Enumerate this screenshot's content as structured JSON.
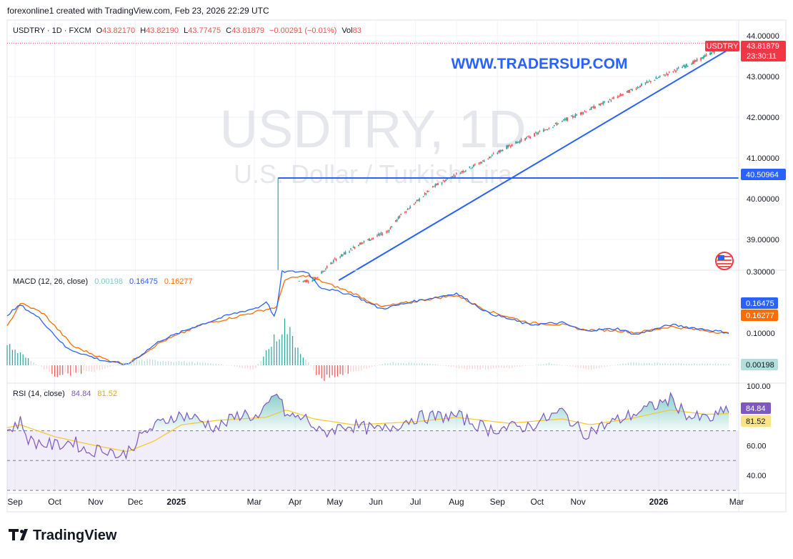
{
  "header": {
    "credit": "forexonline1 created with TradingView.com, Feb 23, 2026 22:29 UTC"
  },
  "legend": {
    "symbol": "USDTRY · 1D · FXCM",
    "o_label": "O",
    "o_value": "43.82170",
    "h_label": "H",
    "h_value": "43.82190",
    "l_label": "L",
    "l_value": "43.77475",
    "c_label": "C",
    "c_value": "43.81879",
    "change": "−0.00291 (−0.01%)",
    "vol_label": "Vol",
    "vol_value": "83"
  },
  "watermark": {
    "title": "USDTRY, 1D",
    "subtitle": "U.S. Dollar / Turkish Lira",
    "site": "WWW.TRADERSUP.COM"
  },
  "price_tags": {
    "symbol_tag": "USDTRY",
    "last_price": "43.81879",
    "countdown": "23:30:11",
    "level_tag": "40.50964"
  },
  "macd_panel": {
    "label": "MACD (12, 26, close)",
    "hist_value": "0.00198",
    "macd_value": "0.16475",
    "signal_value": "0.16277",
    "axis_tick": "0.10000",
    "axis_tick_top": "0.30000"
  },
  "rsi_panel": {
    "label": "RSI (14, close)",
    "rsi_value": "84.84",
    "ma_value": "81.52"
  },
  "footer": {
    "brand": "TradingView"
  },
  "colors": {
    "up": "#26a69a",
    "down": "#ef5350",
    "macd": "#2962ff",
    "signal": "#ff6d00",
    "rsi": "#7e57c2",
    "rsi_ma": "#f7c625",
    "hline": "#2962ff",
    "site": "#2962ff",
    "last_tag": "#f23645",
    "macd_tag": "#2962ff",
    "signal_tag": "#ff6d00",
    "hist_tag": "#b2dfdb",
    "rsi_tag": "#7e57c2",
    "rsima_tag": "#fbe384"
  },
  "chart_data": [
    {
      "type": "candlestick",
      "title": "USDTRY, 1D",
      "x_start": "2024-08-26",
      "x_end": "2026-02-23",
      "x_tick_labels": [
        "Sep",
        "Oct",
        "Nov",
        "Dec",
        "2025",
        "Mar",
        "Apr",
        "May",
        "Jun",
        "Jul",
        "Aug",
        "Sep",
        "Oct",
        "Nov",
        "2026",
        "Mar"
      ],
      "y_tick_labels": [
        "44.00000",
        "43.00000",
        "42.00000",
        "41.00000",
        "40.00000",
        "39.00000"
      ],
      "ylim": [
        38.3,
        44.0
      ],
      "series": [
        {
          "name": "USDTRY",
          "anchors": [
            [
              "2025-04-04",
              37.98
            ],
            [
              "2025-04-15",
              38.0
            ],
            [
              "2025-05-01",
              38.5
            ],
            [
              "2025-05-20",
              38.9
            ],
            [
              "2025-06-10",
              39.2
            ],
            [
              "2025-06-20",
              39.6
            ],
            [
              "2025-07-01",
              39.9
            ],
            [
              "2025-07-15",
              40.3
            ],
            [
              "2025-08-01",
              40.6
            ],
            [
              "2025-08-20",
              40.9
            ],
            [
              "2025-09-10",
              41.3
            ],
            [
              "2025-10-01",
              41.6
            ],
            [
              "2025-10-20",
              41.9
            ],
            [
              "2025-11-10",
              42.2
            ],
            [
              "2025-12-01",
              42.5
            ],
            [
              "2025-12-20",
              42.8
            ],
            [
              "2026-01-10",
              43.1
            ],
            [
              "2026-01-31",
              43.4
            ],
            [
              "2026-02-23",
              43.82
            ]
          ]
        },
        {
          "name": "spike",
          "points": [
            [
              "2025-03-19",
              40.50964
            ]
          ]
        }
      ],
      "horizontal_line": 40.50964,
      "trendline": [
        [
          "2025-05-04",
          38.0
        ],
        [
          "2026-02-26",
          43.72
        ]
      ],
      "last_price": 43.81879
    },
    {
      "type": "macd",
      "title": "MACD (12, 26, close)",
      "ylim": [
        0.04,
        0.32
      ],
      "series": [
        {
          "name": "MACD",
          "anchors": [
            [
              "2024-08-26",
              0.21
            ],
            [
              "2024-09-05",
              0.235
            ],
            [
              "2024-09-20",
              0.2
            ],
            [
              "2024-10-10",
              0.125
            ],
            [
              "2024-11-05",
              0.095
            ],
            [
              "2024-11-25",
              0.083
            ],
            [
              "2024-12-20",
              0.145
            ],
            [
              "2025-01-15",
              0.18
            ],
            [
              "2025-02-10",
              0.21
            ],
            [
              "2025-03-05",
              0.23
            ],
            [
              "2025-03-10",
              0.245
            ],
            [
              "2025-03-17",
              0.2
            ],
            [
              "2025-03-22",
              0.32
            ],
            [
              "2025-04-10",
              0.32
            ],
            [
              "2025-04-20",
              0.28
            ],
            [
              "2025-05-15",
              0.26
            ],
            [
              "2025-06-05",
              0.225
            ],
            [
              "2025-07-01",
              0.245
            ],
            [
              "2025-08-01",
              0.265
            ],
            [
              "2025-08-25",
              0.215
            ],
            [
              "2025-09-25",
              0.185
            ],
            [
              "2025-10-20",
              0.19
            ],
            [
              "2025-11-05",
              0.17
            ],
            [
              "2025-12-01",
              0.175
            ],
            [
              "2025-12-15",
              0.16
            ],
            [
              "2026-01-10",
              0.185
            ],
            [
              "2026-02-23",
              0.16475
            ]
          ]
        },
        {
          "name": "Signal",
          "anchors": [
            [
              "2024-08-26",
              0.18
            ],
            [
              "2024-09-05",
              0.24
            ],
            [
              "2024-09-22",
              0.215
            ],
            [
              "2024-10-15",
              0.13
            ],
            [
              "2024-11-10",
              0.095
            ],
            [
              "2024-11-25",
              0.085
            ],
            [
              "2024-12-20",
              0.14
            ],
            [
              "2025-01-20",
              0.185
            ],
            [
              "2025-02-15",
              0.205
            ],
            [
              "2025-03-05",
              0.22
            ],
            [
              "2025-03-18",
              0.23
            ],
            [
              "2025-03-24",
              0.3
            ],
            [
              "2025-04-10",
              0.31
            ],
            [
              "2025-04-25",
              0.29
            ],
            [
              "2025-05-15",
              0.265
            ],
            [
              "2025-06-05",
              0.23
            ],
            [
              "2025-07-01",
              0.245
            ],
            [
              "2025-08-01",
              0.26
            ],
            [
              "2025-08-25",
              0.22
            ],
            [
              "2025-09-25",
              0.19
            ],
            [
              "2025-10-20",
              0.185
            ],
            [
              "2025-11-05",
              0.172
            ],
            [
              "2025-12-01",
              0.17
            ],
            [
              "2025-12-15",
              0.165
            ],
            [
              "2026-01-10",
              0.18
            ],
            [
              "2026-02-23",
              0.16277
            ]
          ]
        },
        {
          "name": "Histogram",
          "anchors": [
            [
              "2024-08-26",
              0.03
            ],
            [
              "2024-09-10",
              0.01
            ],
            [
              "2024-10-01",
              -0.015
            ],
            [
              "2024-11-01",
              -0.008
            ],
            [
              "2024-12-01",
              0.008
            ],
            [
              "2025-01-01",
              0.006
            ],
            [
              "2025-02-01",
              0.002
            ],
            [
              "2025-03-01",
              -0.006
            ],
            [
              "2025-03-24",
              0.06
            ],
            [
              "2025-04-05",
              0.02
            ],
            [
              "2025-04-20",
              -0.02
            ],
            [
              "2025-05-10",
              -0.012
            ],
            [
              "2025-06-10",
              0.004
            ],
            [
              "2025-07-10",
              0.003
            ],
            [
              "2025-08-10",
              -0.006
            ],
            [
              "2025-09-10",
              -0.004
            ],
            [
              "2025-10-10",
              0.003
            ],
            [
              "2025-11-10",
              -0.006
            ],
            [
              "2025-12-10",
              0.004
            ],
            [
              "2026-01-10",
              0.003
            ],
            [
              "2026-02-23",
              0.00198
            ]
          ]
        }
      ],
      "y_tick_labels": [
        "0.10000"
      ]
    },
    {
      "type": "line",
      "title": "RSI (14, close)",
      "ylim": [
        30,
        100
      ],
      "y_tick_labels": [
        "100.00",
        "60.00",
        "40.00"
      ],
      "bands": [
        70,
        30
      ],
      "series": [
        {
          "name": "RSI",
          "anchors": [
            [
              "2024-08-26",
              70
            ],
            [
              "2024-09-05",
              76
            ],
            [
              "2024-09-12",
              63
            ],
            [
              "2024-10-01",
              60
            ],
            [
              "2024-10-15",
              63
            ],
            [
              "2024-10-25",
              56
            ],
            [
              "2024-11-10",
              58
            ],
            [
              "2024-11-20",
              52
            ],
            [
              "2024-12-10",
              70
            ],
            [
              "2024-12-30",
              80
            ],
            [
              "2025-01-10",
              80
            ],
            [
              "2025-02-01",
              72
            ],
            [
              "2025-02-20",
              82
            ],
            [
              "2025-03-05",
              78
            ],
            [
              "2025-03-18",
              96
            ],
            [
              "2025-03-25",
              80
            ],
            [
              "2025-04-10",
              78
            ],
            [
              "2025-04-20",
              68
            ],
            [
              "2025-05-10",
              74
            ],
            [
              "2025-06-05",
              70
            ],
            [
              "2025-07-01",
              79
            ],
            [
              "2025-08-01",
              80
            ],
            [
              "2025-08-25",
              71
            ],
            [
              "2025-09-25",
              73
            ],
            [
              "2025-10-20",
              83
            ],
            [
              "2025-11-05",
              68
            ],
            [
              "2025-11-25",
              75
            ],
            [
              "2025-12-15",
              82
            ],
            [
              "2026-01-10",
              91
            ],
            [
              "2026-01-25",
              79
            ],
            [
              "2026-02-10",
              78
            ],
            [
              "2026-02-23",
              84.84
            ]
          ]
        },
        {
          "name": "RSI MA",
          "anchors": [
            [
              "2024-08-26",
              72
            ],
            [
              "2024-09-05",
              74
            ],
            [
              "2024-10-01",
              66
            ],
            [
              "2024-11-01",
              60
            ],
            [
              "2024-11-25",
              56
            ],
            [
              "2024-12-15",
              63
            ],
            [
              "2025-01-05",
              74
            ],
            [
              "2025-02-01",
              77
            ],
            [
              "2025-03-10",
              79
            ],
            [
              "2025-03-25",
              84
            ],
            [
              "2025-04-15",
              78
            ],
            [
              "2025-05-15",
              74
            ],
            [
              "2025-07-01",
              76
            ],
            [
              "2025-08-01",
              79
            ],
            [
              "2025-09-10",
              75
            ],
            [
              "2025-10-20",
              78
            ],
            [
              "2025-11-10",
              74
            ],
            [
              "2025-12-10",
              78
            ],
            [
              "2026-01-10",
              84
            ],
            [
              "2026-02-05",
              81
            ],
            [
              "2026-02-23",
              81.52
            ]
          ]
        }
      ],
      "last_values": {
        "RSI": 84.84,
        "RSI MA": 81.52
      }
    }
  ]
}
